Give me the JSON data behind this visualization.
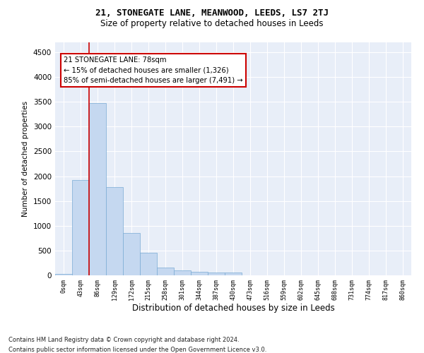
{
  "title1": "21, STONEGATE LANE, MEANWOOD, LEEDS, LS7 2TJ",
  "title2": "Size of property relative to detached houses in Leeds",
  "xlabel": "Distribution of detached houses by size in Leeds",
  "ylabel": "Number of detached properties",
  "categories": [
    "0sqm",
    "43sqm",
    "86sqm",
    "129sqm",
    "172sqm",
    "215sqm",
    "258sqm",
    "301sqm",
    "344sqm",
    "387sqm",
    "430sqm",
    "473sqm",
    "516sqm",
    "559sqm",
    "602sqm",
    "645sqm",
    "688sqm",
    "731sqm",
    "774sqm",
    "817sqm",
    "860sqm"
  ],
  "bar_values": [
    30,
    1920,
    3480,
    1780,
    860,
    450,
    160,
    95,
    75,
    60,
    55,
    0,
    0,
    0,
    0,
    0,
    0,
    0,
    0,
    0,
    0
  ],
  "bar_color": "#c5d8f0",
  "bar_edgecolor": "#7aabd4",
  "annotation_box_text": "21 STONEGATE LANE: 78sqm\n← 15% of detached houses are smaller (1,326)\n85% of semi-detached houses are larger (7,491) →",
  "vline_x": 1.5,
  "vline_color": "#cc0000",
  "ylim": [
    0,
    4700
  ],
  "yticks": [
    0,
    500,
    1000,
    1500,
    2000,
    2500,
    3000,
    3500,
    4000,
    4500
  ],
  "footer1": "Contains HM Land Registry data © Crown copyright and database right 2024.",
  "footer2": "Contains public sector information licensed under the Open Government Licence v3.0.",
  "background_color": "#e8eef8",
  "grid_color": "#ffffff"
}
